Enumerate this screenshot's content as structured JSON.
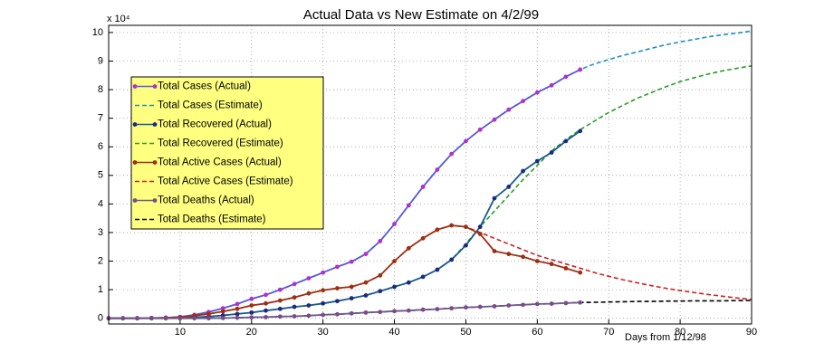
{
  "chart_data": {
    "type": "line",
    "title": "Actual Data vs New Estimate on 4/2/99",
    "x_label": "Days from 1/12/98",
    "y_multiplier": "x 10⁴",
    "xlim": [
      0,
      90
    ],
    "xticks": [
      10,
      20,
      30,
      40,
      50,
      60,
      70,
      80,
      90
    ],
    "ylim": [
      -0.2,
      10.25
    ],
    "yticks": [
      0,
      1,
      2,
      3,
      4,
      5,
      6,
      7,
      8,
      9,
      10
    ],
    "grid": true,
    "legend": "upper left",
    "x": [
      0,
      2,
      4,
      6,
      8,
      10,
      12,
      14,
      16,
      18,
      20,
      22,
      24,
      26,
      28,
      30,
      32,
      34,
      36,
      38,
      40,
      42,
      44,
      46,
      48,
      50,
      52,
      54,
      56,
      58,
      60,
      62,
      64,
      66,
      68,
      70,
      72,
      74,
      76,
      78,
      80,
      82,
      84,
      86,
      88,
      90
    ],
    "series": [
      {
        "name": "Total Cases (Actual)",
        "color": "#b22fd0",
        "line_color": "#5a5ad8",
        "style": "solid",
        "marker": true,
        "values": [
          0,
          0,
          0,
          0.01,
          0.02,
          0.05,
          0.12,
          0.22,
          0.35,
          0.5,
          0.68,
          0.82,
          1.0,
          1.2,
          1.4,
          1.6,
          1.8,
          1.98,
          2.25,
          2.7,
          3.3,
          3.95,
          4.6,
          5.2,
          5.75,
          6.2,
          6.6,
          6.95,
          7.3,
          7.6,
          7.9,
          8.15,
          8.45,
          8.7,
          null,
          null,
          null,
          null,
          null,
          null,
          null,
          null,
          null,
          null,
          null,
          null
        ]
      },
      {
        "name": "Total Cases (Estimate)",
        "color": "#1f8fc8",
        "style": "dashed",
        "marker": false,
        "values": [
          0,
          0,
          0,
          0.01,
          0.02,
          0.05,
          0.12,
          0.22,
          0.35,
          0.5,
          0.68,
          0.82,
          1.0,
          1.2,
          1.4,
          1.6,
          1.8,
          1.98,
          2.25,
          2.7,
          3.3,
          3.95,
          4.6,
          5.2,
          5.75,
          6.2,
          6.6,
          6.95,
          7.3,
          7.6,
          7.9,
          8.15,
          8.45,
          8.7,
          8.9,
          9.05,
          9.2,
          9.32,
          9.45,
          9.57,
          9.67,
          9.76,
          9.85,
          9.92,
          9.98,
          10.05
        ]
      },
      {
        "name": "Total Recovered (Actual)",
        "color": "#1b2a80",
        "line_color": "#1b5a90",
        "style": "solid",
        "marker": true,
        "values": [
          0,
          0,
          0,
          0,
          0,
          0.01,
          0.03,
          0.06,
          0.1,
          0.15,
          0.2,
          0.27,
          0.33,
          0.4,
          0.45,
          0.52,
          0.6,
          0.7,
          0.8,
          0.95,
          1.1,
          1.25,
          1.45,
          1.7,
          2.05,
          2.55,
          3.2,
          4.2,
          4.6,
          5.15,
          5.5,
          5.8,
          6.2,
          6.55,
          null,
          null,
          null,
          null,
          null,
          null,
          null,
          null,
          null,
          null,
          null,
          null
        ]
      },
      {
        "name": "Total Recovered (Estimate)",
        "color": "#2a9d2a",
        "style": "dashed",
        "marker": false,
        "values": [
          0,
          0,
          0,
          0,
          0,
          0.01,
          0.03,
          0.06,
          0.1,
          0.15,
          0.2,
          0.27,
          0.33,
          0.4,
          0.45,
          0.52,
          0.6,
          0.7,
          0.8,
          0.95,
          1.1,
          1.25,
          1.45,
          1.7,
          2.05,
          2.6,
          3.2,
          3.75,
          4.3,
          4.85,
          5.35,
          5.85,
          6.25,
          6.6,
          6.9,
          7.2,
          7.45,
          7.7,
          7.9,
          8.1,
          8.28,
          8.42,
          8.55,
          8.66,
          8.75,
          8.83
        ]
      },
      {
        "name": "Total Active Cases (Actual)",
        "color": "#9a3010",
        "line_color": "#a03018",
        "style": "solid",
        "marker": true,
        "values": [
          0,
          0,
          0,
          0.01,
          0.02,
          0.04,
          0.09,
          0.15,
          0.24,
          0.33,
          0.45,
          0.52,
          0.62,
          0.73,
          0.87,
          0.98,
          1.05,
          1.1,
          1.25,
          1.5,
          2.0,
          2.45,
          2.8,
          3.1,
          3.25,
          3.2,
          2.95,
          2.35,
          2.25,
          2.15,
          2.0,
          1.9,
          1.75,
          1.6,
          null,
          null,
          null,
          null,
          null,
          null,
          null,
          null,
          null,
          null,
          null,
          null
        ]
      },
      {
        "name": "Total Active Cases (Estimate)",
        "color": "#d02020",
        "style": "dashed",
        "marker": false,
        "values": [
          0,
          0,
          0,
          0.01,
          0.02,
          0.04,
          0.09,
          0.15,
          0.24,
          0.33,
          0.45,
          0.52,
          0.62,
          0.73,
          0.87,
          0.98,
          1.05,
          1.1,
          1.25,
          1.5,
          2.0,
          2.45,
          2.8,
          3.1,
          3.25,
          3.2,
          3.0,
          2.8,
          2.6,
          2.4,
          2.2,
          2.05,
          1.9,
          1.75,
          1.6,
          1.47,
          1.35,
          1.24,
          1.14,
          1.05,
          0.97,
          0.9,
          0.83,
          0.77,
          0.71,
          0.66
        ]
      },
      {
        "name": "Total Deaths (Actual)",
        "color": "#7a4a8a",
        "line_color": "#6a5a8a",
        "style": "solid",
        "marker": true,
        "values": [
          0,
          0,
          0,
          0,
          0,
          0,
          0,
          0,
          0.01,
          0.02,
          0.03,
          0.04,
          0.06,
          0.07,
          0.09,
          0.12,
          0.14,
          0.17,
          0.2,
          0.22,
          0.25,
          0.27,
          0.3,
          0.32,
          0.35,
          0.38,
          0.4,
          0.42,
          0.45,
          0.47,
          0.5,
          0.51,
          0.53,
          0.55,
          null,
          null,
          null,
          null,
          null,
          null,
          null,
          null,
          null,
          null,
          null,
          null
        ]
      },
      {
        "name": "Total Deaths (Estimate)",
        "color": "#000000",
        "style": "dashed",
        "marker": false,
        "values": [
          0,
          0,
          0,
          0,
          0,
          0,
          0,
          0,
          0.01,
          0.02,
          0.03,
          0.04,
          0.06,
          0.07,
          0.09,
          0.12,
          0.14,
          0.17,
          0.2,
          0.22,
          0.25,
          0.27,
          0.3,
          0.32,
          0.35,
          0.38,
          0.4,
          0.42,
          0.45,
          0.47,
          0.5,
          0.51,
          0.53,
          0.55,
          0.56,
          0.57,
          0.58,
          0.59,
          0.59,
          0.6,
          0.6,
          0.61,
          0.61,
          0.61,
          0.62,
          0.62
        ]
      }
    ]
  }
}
